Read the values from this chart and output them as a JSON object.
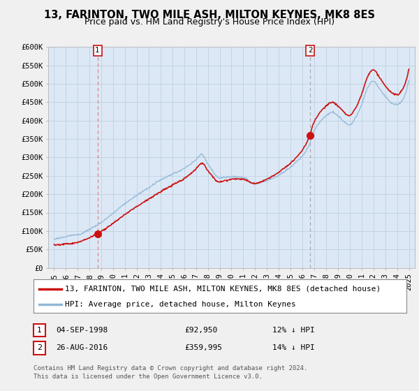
{
  "title": "13, FARINTON, TWO MILE ASH, MILTON KEYNES, MK8 8ES",
  "subtitle": "Price paid vs. HM Land Registry's House Price Index (HPI)",
  "ylim": [
    0,
    600000
  ],
  "xlim": [
    1994.5,
    2025.5
  ],
  "yticks": [
    0,
    50000,
    100000,
    150000,
    200000,
    250000,
    300000,
    350000,
    400000,
    450000,
    500000,
    550000,
    600000
  ],
  "ytick_labels": [
    "£0",
    "£50K",
    "£100K",
    "£150K",
    "£200K",
    "£250K",
    "£300K",
    "£350K",
    "£400K",
    "£450K",
    "£500K",
    "£550K",
    "£600K"
  ],
  "xticks": [
    1995,
    1996,
    1997,
    1998,
    1999,
    2000,
    2001,
    2002,
    2003,
    2004,
    2005,
    2006,
    2007,
    2008,
    2009,
    2010,
    2011,
    2012,
    2013,
    2014,
    2015,
    2016,
    2017,
    2018,
    2019,
    2020,
    2021,
    2022,
    2023,
    2024,
    2025
  ],
  "hpi_color": "#90b8d8",
  "price_color": "#cc1111",
  "marker_color": "#cc1111",
  "marker_size": 7,
  "sale1_x": 1998.67,
  "sale1_y": 92950,
  "sale2_x": 2016.65,
  "sale2_y": 359995,
  "sale1_vline_color": "#dd8888",
  "sale2_vline_color": "#aaaaaa",
  "plot_bg_color": "#dce8f5",
  "background_color": "#f0f0f0",
  "grid_color": "#c0d0e0",
  "title_fontsize": 10.5,
  "subtitle_fontsize": 9,
  "tick_fontsize": 7.5,
  "legend_fontsize": 8,
  "footer_fontsize": 6.5,
  "legend_label_red": "13, FARINTON, TWO MILE ASH, MILTON KEYNES, MK8 8ES (detached house)",
  "legend_label_blue": "HPI: Average price, detached house, Milton Keynes",
  "sale1_date": "04-SEP-1998",
  "sale1_price": "£92,950",
  "sale1_pct": "12% ↓ HPI",
  "sale2_date": "26-AUG-2016",
  "sale2_price": "£359,995",
  "sale2_pct": "14% ↓ HPI",
  "footer": "Contains HM Land Registry data © Crown copyright and database right 2024.\nThis data is licensed under the Open Government Licence v3.0."
}
